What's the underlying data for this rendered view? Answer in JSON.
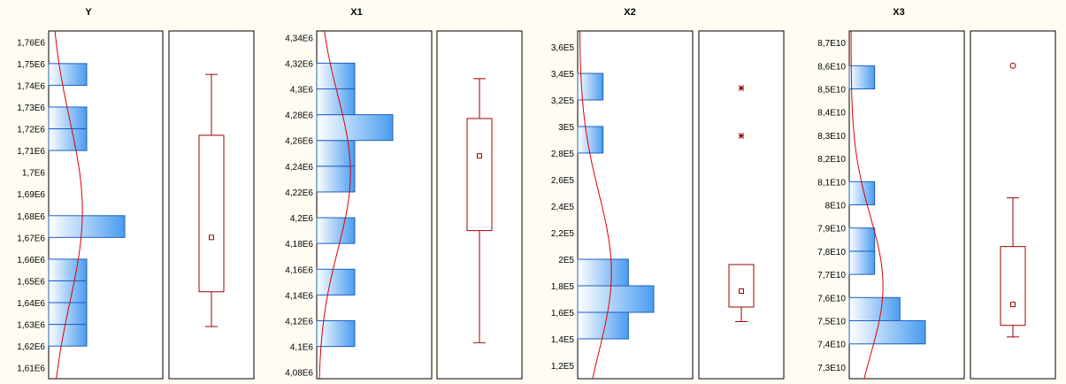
{
  "colors": {
    "background": "#fffdf3",
    "bar_light": "#ffffff",
    "bar_dark": "#4a9cf0",
    "bar_stroke": "#1f5fbf",
    "curve": "#e00000",
    "box": "#a00000"
  },
  "chart_data": [
    {
      "type": "histogram+boxplot",
      "title": "Y",
      "ylim": [
        1605000,
        1765000
      ],
      "ticks": [
        1610000,
        1620000,
        1630000,
        1640000,
        1650000,
        1660000,
        1670000,
        1680000,
        1690000,
        1700000,
        1710000,
        1720000,
        1730000,
        1740000,
        1750000,
        1760000
      ],
      "tick_labels": [
        "1,61E6",
        "1,62E6",
        "1,63E6",
        "1,64E6",
        "1,65E6",
        "1,66E6",
        "1,67E6",
        "1,68E6",
        "1,69E6",
        "1,7E6",
        "1,71E6",
        "1,72E6",
        "1,73E6",
        "1,74E6",
        "1,75E6",
        "1,76E6"
      ],
      "bins": [
        {
          "from": 1620000,
          "to": 1630000,
          "count": 1
        },
        {
          "from": 1630000,
          "to": 1640000,
          "count": 1
        },
        {
          "from": 1640000,
          "to": 1650000,
          "count": 1
        },
        {
          "from": 1650000,
          "to": 1660000,
          "count": 1
        },
        {
          "from": 1670000,
          "to": 1680000,
          "count": 2
        },
        {
          "from": 1710000,
          "to": 1720000,
          "count": 1
        },
        {
          "from": 1720000,
          "to": 1730000,
          "count": 1
        },
        {
          "from": 1740000,
          "to": 1750000,
          "count": 1
        }
      ],
      "max_count": 2,
      "normal": {
        "mean": 1682000,
        "sd": 42000
      },
      "box": {
        "min": 1629000,
        "q1": 1645000,
        "median": 1680000,
        "q3": 1717000,
        "max": 1745000,
        "mean": 1670000,
        "outliers": [],
        "outlier_style": "none"
      }
    },
    {
      "type": "histogram+boxplot",
      "title": "X1",
      "ylim": [
        4075000,
        4345000
      ],
      "ticks": [
        4080000,
        4100000,
        4120000,
        4140000,
        4160000,
        4180000,
        4200000,
        4220000,
        4240000,
        4260000,
        4280000,
        4300000,
        4320000,
        4340000
      ],
      "tick_labels": [
        "4,08E6",
        "4,1E6",
        "4,12E6",
        "4,14E6",
        "4,16E6",
        "4,18E6",
        "4,2E6",
        "4,22E6",
        "4,24E6",
        "4,26E6",
        "4,28E6",
        "4,3E6",
        "4,32E6",
        "4,34E6"
      ],
      "bins": [
        {
          "from": 4100000,
          "to": 4120000,
          "count": 1
        },
        {
          "from": 4140000,
          "to": 4160000,
          "count": 1
        },
        {
          "from": 4180000,
          "to": 4200000,
          "count": 1
        },
        {
          "from": 4220000,
          "to": 4240000,
          "count": 1
        },
        {
          "from": 4240000,
          "to": 4260000,
          "count": 1
        },
        {
          "from": 4260000,
          "to": 4280000,
          "count": 2
        },
        {
          "from": 4280000,
          "to": 4300000,
          "count": 1
        },
        {
          "from": 4300000,
          "to": 4320000,
          "count": 1
        }
      ],
      "max_count": 2,
      "normal": {
        "mean": 4235000,
        "sd": 60000
      },
      "box": {
        "min": 4103000,
        "q1": 4190000,
        "median": 4250000,
        "q3": 4277000,
        "max": 4308000,
        "mean": 4248000,
        "outliers": [],
        "outlier_style": "none"
      }
    },
    {
      "type": "histogram+boxplot",
      "title": "X2",
      "ylim": [
        110000,
        372000
      ],
      "ticks": [
        120000,
        140000,
        160000,
        180000,
        200000,
        220000,
        240000,
        260000,
        280000,
        300000,
        320000,
        340000,
        360000
      ],
      "tick_labels": [
        "1,2E5",
        "1,4E5",
        "1,6E5",
        "1,8E5",
        "2E5",
        "2,2E5",
        "2,4E5",
        "2,6E5",
        "2,8E5",
        "3E5",
        "3,2E5",
        "3,4E5",
        "3,6E5"
      ],
      "bins": [
        {
          "from": 140000,
          "to": 160000,
          "count": 2
        },
        {
          "from": 160000,
          "to": 180000,
          "count": 3
        },
        {
          "from": 180000,
          "to": 200000,
          "count": 2
        },
        {
          "from": 280000,
          "to": 300000,
          "count": 1
        },
        {
          "from": 320000,
          "to": 340000,
          "count": 1
        }
      ],
      "max_count": 3,
      "normal": {
        "mean": 190000,
        "sd": 60000
      },
      "box": {
        "min": 153000,
        "q1": 164000,
        "median": 180000,
        "q3": 196000,
        "max": 196000,
        "mean": 176000,
        "outliers": [
          293000,
          329000
        ],
        "outlier_style": "star"
      }
    },
    {
      "type": "histogram+boxplot",
      "title": "X3",
      "ylim": [
        72500000000,
        87500000000
      ],
      "ticks": [
        73000000000,
        74000000000,
        75000000000,
        76000000000,
        77000000000,
        78000000000,
        79000000000,
        80000000000,
        81000000000,
        82000000000,
        83000000000,
        84000000000,
        85000000000,
        86000000000,
        87000000000
      ],
      "tick_labels": [
        "7,3E10",
        "7,4E10",
        "7,5E10",
        "7,6E10",
        "7,7E10",
        "7,8E10",
        "7,9E10",
        "8E10",
        "8,1E10",
        "8,2E10",
        "8,3E10",
        "8,4E10",
        "8,5E10",
        "8,6E10",
        "8,7E10"
      ],
      "bins": [
        {
          "from": 74000000000,
          "to": 75000000000,
          "count": 3
        },
        {
          "from": 75000000000,
          "to": 76000000000,
          "count": 2
        },
        {
          "from": 77000000000,
          "to": 78000000000,
          "count": 1
        },
        {
          "from": 78000000000,
          "to": 79000000000,
          "count": 1
        },
        {
          "from": 80000000000,
          "to": 81000000000,
          "count": 1
        },
        {
          "from": 85000000000,
          "to": 86000000000,
          "count": 1
        }
      ],
      "max_count": 3,
      "normal": {
        "mean": 76500000000,
        "sd": 3000000000
      },
      "box": {
        "min": 74300000000,
        "q1": 74800000000,
        "median": 75300000000,
        "q3": 78200000000,
        "max": 80300000000,
        "mean": 75700000000,
        "outliers": [
          86000000000
        ],
        "outlier_style": "circle"
      }
    }
  ]
}
